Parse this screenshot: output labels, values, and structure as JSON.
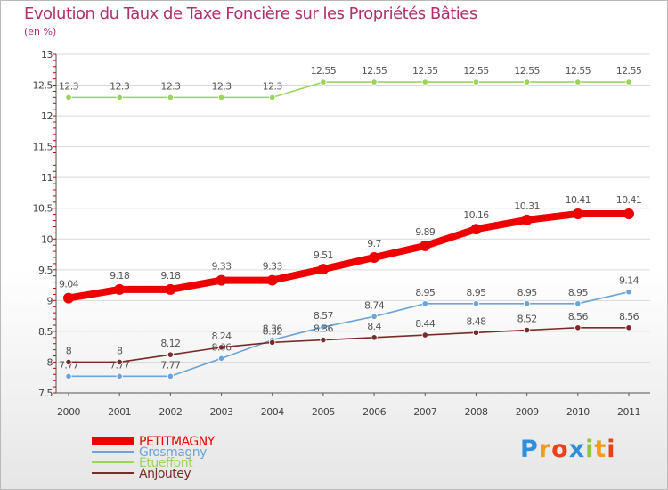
{
  "title": "Evolution du Taux de Taxe Foncière sur les Propriétés Bâties",
  "unit_label": "(en %)",
  "logo": {
    "text": "Proxiti",
    "colors": [
      "#2f8fd8",
      "#f29b1d",
      "#e8421d",
      "#2f8fd8",
      "#8ec63f",
      "#f29b1d",
      "#e8421d"
    ]
  },
  "chart_data": {
    "type": "line",
    "title": "Evolution du Taux de Taxe Foncière sur les Propriétés Bâties",
    "ylabel": "(en %)",
    "xlabel": "",
    "ylim": [
      7.5,
      13
    ],
    "yticks": [
      "7.5",
      "8",
      "8.5",
      "9",
      "9.5",
      "10",
      "10.5",
      "11",
      "11.5",
      "12",
      "12.5",
      "13"
    ],
    "categories": [
      "2000",
      "2001",
      "2002",
      "2003",
      "2004",
      "2005",
      "2006",
      "2007",
      "2008",
      "2009",
      "2010",
      "2011"
    ],
    "series": [
      {
        "name": "PETITMAGNY",
        "color": "#ee0000",
        "thick": true,
        "values": [
          9.04,
          9.18,
          9.18,
          9.33,
          9.33,
          9.51,
          9.7,
          9.89,
          10.16,
          10.31,
          10.41,
          10.41
        ],
        "labels": [
          "9.04",
          "9.18",
          "9.18",
          "9.33",
          "9.33",
          "9.51",
          "9.7",
          "9.89",
          "10.16",
          "10.31",
          "10.41",
          "10.41"
        ]
      },
      {
        "name": "Grosmagny",
        "color": "#6aa4d8",
        "thick": false,
        "values": [
          7.77,
          7.77,
          7.77,
          8.06,
          8.36,
          8.57,
          8.74,
          8.95,
          8.95,
          8.95,
          8.95,
          9.14
        ],
        "labels": [
          "7.77",
          "7.77",
          "7.77",
          "8.06",
          "8.36",
          "8.57",
          "8.74",
          "8.95",
          "8.95",
          "8.95",
          "8.95",
          "9.14"
        ]
      },
      {
        "name": "Étueffont",
        "color": "#9ad45a",
        "thick": false,
        "values": [
          12.3,
          12.3,
          12.3,
          12.3,
          12.3,
          12.55,
          12.55,
          12.55,
          12.55,
          12.55,
          12.55,
          12.55
        ],
        "labels": [
          "12.3",
          "12.3",
          "12.3",
          "12.3",
          "12.3",
          "12.55",
          "12.55",
          "12.55",
          "12.55",
          "12.55",
          "12.55",
          "12.55"
        ]
      },
      {
        "name": "Anjoutey",
        "color": "#7b2a2a",
        "thick": false,
        "values": [
          8,
          8,
          8.12,
          8.24,
          8.32,
          8.36,
          8.4,
          8.44,
          8.48,
          8.52,
          8.56,
          8.56
        ],
        "labels": [
          "8",
          "8",
          "8.12",
          "8.24",
          "8.32",
          "8.36",
          "8.4",
          "8.44",
          "8.48",
          "8.52",
          "8.56",
          "8.56"
        ]
      }
    ]
  }
}
